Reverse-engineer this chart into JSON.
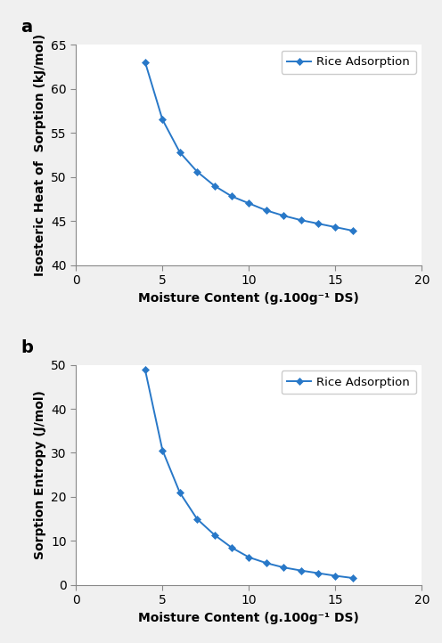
{
  "panel_a": {
    "label": "a",
    "x": [
      4,
      5,
      6,
      7,
      8,
      9,
      10,
      11,
      12,
      13,
      14,
      15,
      16
    ],
    "y": [
      63.0,
      56.5,
      52.8,
      50.6,
      49.0,
      47.8,
      47.0,
      46.2,
      45.6,
      45.1,
      44.7,
      44.3,
      43.9
    ],
    "xlabel": "Moisture Content (g.100g⁻¹ DS)",
    "ylabel": "Isosteric Heat of  Sorption (kJ/mol)",
    "xlim": [
      0,
      20
    ],
    "ylim": [
      40,
      65
    ],
    "yticks": [
      40,
      45,
      50,
      55,
      60,
      65
    ],
    "xticks": [
      0,
      5,
      10,
      15,
      20
    ],
    "legend": "Rice Adsorption",
    "line_color": "#2878c8",
    "marker": "D",
    "markersize": 4.5
  },
  "panel_b": {
    "label": "b",
    "x": [
      4,
      5,
      6,
      7,
      8,
      9,
      10,
      11,
      12,
      13,
      14,
      15,
      16
    ],
    "y": [
      48.8,
      30.6,
      21.0,
      15.0,
      11.4,
      8.5,
      6.3,
      5.0,
      4.0,
      3.3,
      2.7,
      2.1,
      1.6
    ],
    "xlabel": "Moisture Content (g.100g⁻¹ DS)",
    "ylabel": "Sorption Entropy (J/mol)",
    "xlim": [
      0,
      20
    ],
    "ylim": [
      0,
      50
    ],
    "yticks": [
      0,
      10,
      20,
      30,
      40,
      50
    ],
    "xticks": [
      0,
      5,
      10,
      15,
      20
    ],
    "legend": "Rice Adsorption",
    "line_color": "#2878c8",
    "marker": "D",
    "markersize": 4.5
  },
  "figure_bg": "#f0f0f0",
  "axes_bg": "#ffffff",
  "tick_color": "#000000",
  "spine_color": "#888888",
  "label_fontsize": 10,
  "tick_fontsize": 10,
  "legend_fontsize": 9.5,
  "panel_label_fontsize": 14
}
